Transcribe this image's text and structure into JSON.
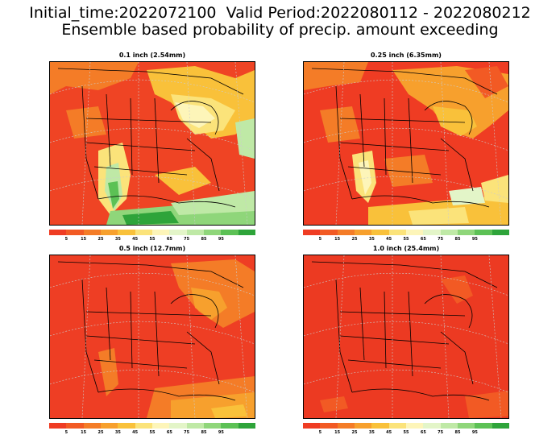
{
  "header": {
    "line1": "Initial_time:2022072100  Valid Period:2022080112 - 2022080212",
    "line2": "Ensemble based probability of precip. amount exceeding"
  },
  "panels": [
    {
      "title": "0.1 inch (2.54mm)"
    },
    {
      "title": "0.25 inch (6.35mm)"
    },
    {
      "title": "0.5 inch (12.7mm)"
    },
    {
      "title": "1.0 inch (25.4mm)"
    }
  ],
  "colorbar": {
    "labels": [
      "5",
      "15",
      "25",
      "35",
      "45",
      "55",
      "65",
      "75",
      "85",
      "95"
    ],
    "colors": [
      "#ef3c23",
      "#f25a24",
      "#f47c27",
      "#f7a02d",
      "#f9c13a",
      "#fbe37a",
      "#fdf5b9",
      "#e3f5c8",
      "#bfe9a6",
      "#8fd67a",
      "#5cc155",
      "#2ea43a"
    ]
  },
  "legend_palette": {
    "deep_red": "#ee3e24",
    "orange": "#f58a2b",
    "yellow": "#fbe27a",
    "light_green": "#c4ebac",
    "green": "#5cc155"
  }
}
